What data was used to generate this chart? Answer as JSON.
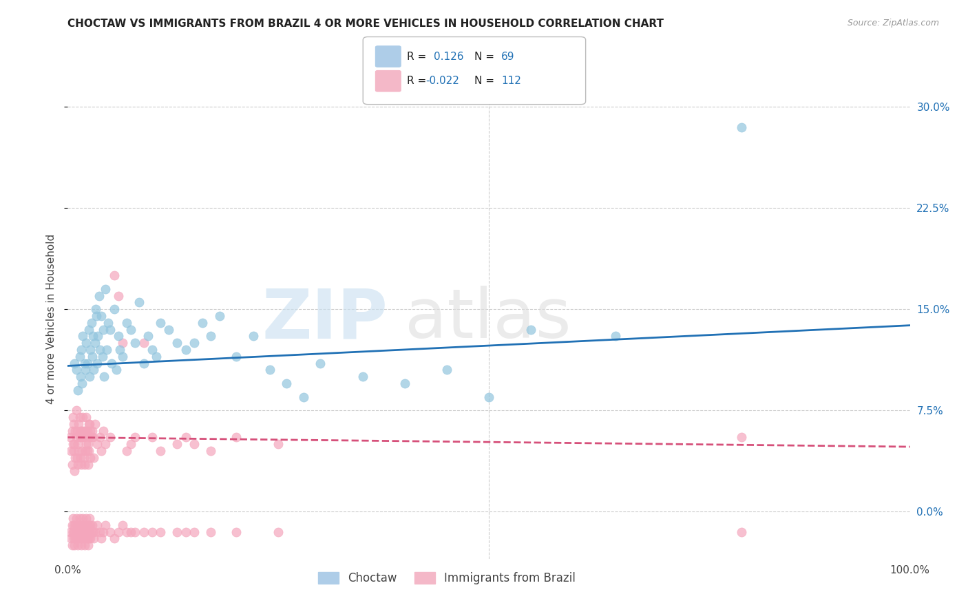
{
  "title": "CHOCTAW VS IMMIGRANTS FROM BRAZIL 4 OR MORE VEHICLES IN HOUSEHOLD CORRELATION CHART",
  "source": "Source: ZipAtlas.com",
  "ylabel": "4 or more Vehicles in Household",
  "xlim": [
    0.0,
    100.0
  ],
  "ylim": [
    -3.5,
    32.0
  ],
  "yticks": [
    0.0,
    7.5,
    15.0,
    22.5,
    30.0
  ],
  "ytick_labels": [
    "0.0%",
    "7.5%",
    "15.0%",
    "22.5%",
    "30.0%"
  ],
  "choctaw_color": "#92c5de",
  "brazil_color": "#f4a6bc",
  "choctaw_line_color": "#2171b5",
  "brazil_line_color": "#d6507a",
  "choctaw_line_y_start": 10.8,
  "choctaw_line_y_end": 13.8,
  "brazil_line_y_start": 5.5,
  "brazil_line_y_end": 4.8,
  "background_color": "#ffffff",
  "grid_color": "#cccccc",
  "choctaw_x": [
    0.8,
    1.0,
    1.2,
    1.4,
    1.5,
    1.6,
    1.7,
    1.8,
    2.0,
    2.1,
    2.2,
    2.3,
    2.5,
    2.6,
    2.7,
    2.8,
    2.9,
    3.0,
    3.1,
    3.2,
    3.3,
    3.4,
    3.5,
    3.6,
    3.7,
    3.8,
    4.0,
    4.1,
    4.2,
    4.3,
    4.5,
    4.6,
    4.8,
    5.0,
    5.2,
    5.5,
    5.8,
    6.0,
    6.2,
    6.5,
    7.0,
    7.5,
    8.0,
    8.5,
    9.0,
    9.5,
    10.0,
    10.5,
    11.0,
    12.0,
    13.0,
    14.0,
    15.0,
    16.0,
    17.0,
    18.0,
    20.0,
    22.0,
    24.0,
    26.0,
    28.0,
    30.0,
    35.0,
    40.0,
    45.0,
    50.0,
    55.0,
    65.0,
    80.0
  ],
  "choctaw_y": [
    11.0,
    10.5,
    9.0,
    11.5,
    10.0,
    12.0,
    9.5,
    13.0,
    11.0,
    10.5,
    12.5,
    11.0,
    13.5,
    10.0,
    12.0,
    14.0,
    11.5,
    13.0,
    10.5,
    12.5,
    15.0,
    14.5,
    11.0,
    13.0,
    16.0,
    12.0,
    14.5,
    11.5,
    13.5,
    10.0,
    16.5,
    12.0,
    14.0,
    13.5,
    11.0,
    15.0,
    10.5,
    13.0,
    12.0,
    11.5,
    14.0,
    13.5,
    12.5,
    15.5,
    11.0,
    13.0,
    12.0,
    11.5,
    14.0,
    13.5,
    12.5,
    12.0,
    12.5,
    14.0,
    13.0,
    14.5,
    11.5,
    13.0,
    10.5,
    9.5,
    8.5,
    11.0,
    10.0,
    9.5,
    10.5,
    8.5,
    13.5,
    13.0,
    28.5
  ],
  "brazil_x": [
    0.3,
    0.4,
    0.5,
    0.5,
    0.6,
    0.6,
    0.7,
    0.7,
    0.8,
    0.8,
    0.9,
    0.9,
    1.0,
    1.0,
    1.1,
    1.1,
    1.2,
    1.2,
    1.3,
    1.3,
    1.4,
    1.4,
    1.5,
    1.5,
    1.6,
    1.6,
    1.7,
    1.7,
    1.8,
    1.8,
    1.9,
    1.9,
    2.0,
    2.0,
    2.1,
    2.1,
    2.2,
    2.2,
    2.3,
    2.3,
    2.4,
    2.4,
    2.5,
    2.5,
    2.6,
    2.6,
    2.7,
    2.7,
    2.8,
    2.9,
    3.0,
    3.1,
    3.2,
    3.5,
    3.8,
    4.0,
    4.2,
    4.5,
    5.0,
    5.5,
    6.0,
    6.5,
    7.0,
    7.5,
    8.0,
    9.0,
    10.0,
    11.0,
    13.0,
    14.0,
    15.0,
    17.0,
    20.0,
    25.0,
    80.0
  ],
  "brazil_y": [
    5.5,
    4.5,
    6.0,
    3.5,
    5.0,
    7.0,
    4.5,
    6.5,
    5.0,
    3.0,
    6.0,
    4.0,
    5.5,
    7.5,
    4.0,
    6.0,
    5.0,
    3.5,
    6.5,
    4.5,
    5.5,
    7.0,
    4.0,
    6.0,
    5.5,
    3.5,
    6.0,
    4.5,
    5.5,
    7.0,
    4.0,
    6.0,
    5.5,
    3.5,
    6.0,
    4.5,
    5.0,
    7.0,
    4.5,
    6.0,
    5.0,
    3.5,
    6.5,
    4.5,
    5.5,
    6.5,
    4.0,
    6.0,
    5.5,
    6.0,
    5.5,
    4.0,
    6.5,
    5.0,
    5.5,
    4.5,
    6.0,
    5.0,
    5.5,
    17.5,
    16.0,
    12.5,
    4.5,
    5.0,
    5.5,
    12.5,
    5.5,
    4.5,
    5.0,
    5.5,
    5.0,
    4.5,
    5.5,
    5.0,
    5.5
  ],
  "brazil_neg_y": [
    -1.5,
    -2.0,
    -1.0,
    -2.5,
    -1.5,
    -0.5,
    -2.0,
    -1.0,
    -1.5,
    -2.5,
    -1.0,
    -2.0,
    -1.5,
    -0.5,
    -2.0,
    -1.0,
    -1.5,
    -2.5,
    -1.0,
    -2.0,
    -1.5,
    -0.5,
    -2.0,
    -1.0,
    -1.5,
    -2.5,
    -1.0,
    -1.5,
    -2.0,
    -0.5,
    -1.0,
    -2.0,
    -1.5,
    -2.5,
    -1.0,
    -2.0,
    -1.5,
    -0.5,
    -2.0,
    -1.0,
    -1.5,
    -2.5,
    -1.0,
    -2.0,
    -1.5,
    -0.5,
    -2.0,
    -1.0,
    -1.5,
    -1.0,
    -1.5,
    -2.0,
    -1.5,
    -1.0,
    -1.5,
    -2.0,
    -1.5,
    -1.0,
    -1.5,
    -2.0,
    -1.5,
    -1.0,
    -1.5,
    -1.5,
    -1.5,
    -1.5,
    -1.5,
    -1.5,
    -1.5,
    -1.5,
    -1.5,
    -1.5,
    -1.5,
    -1.5,
    -1.5
  ]
}
